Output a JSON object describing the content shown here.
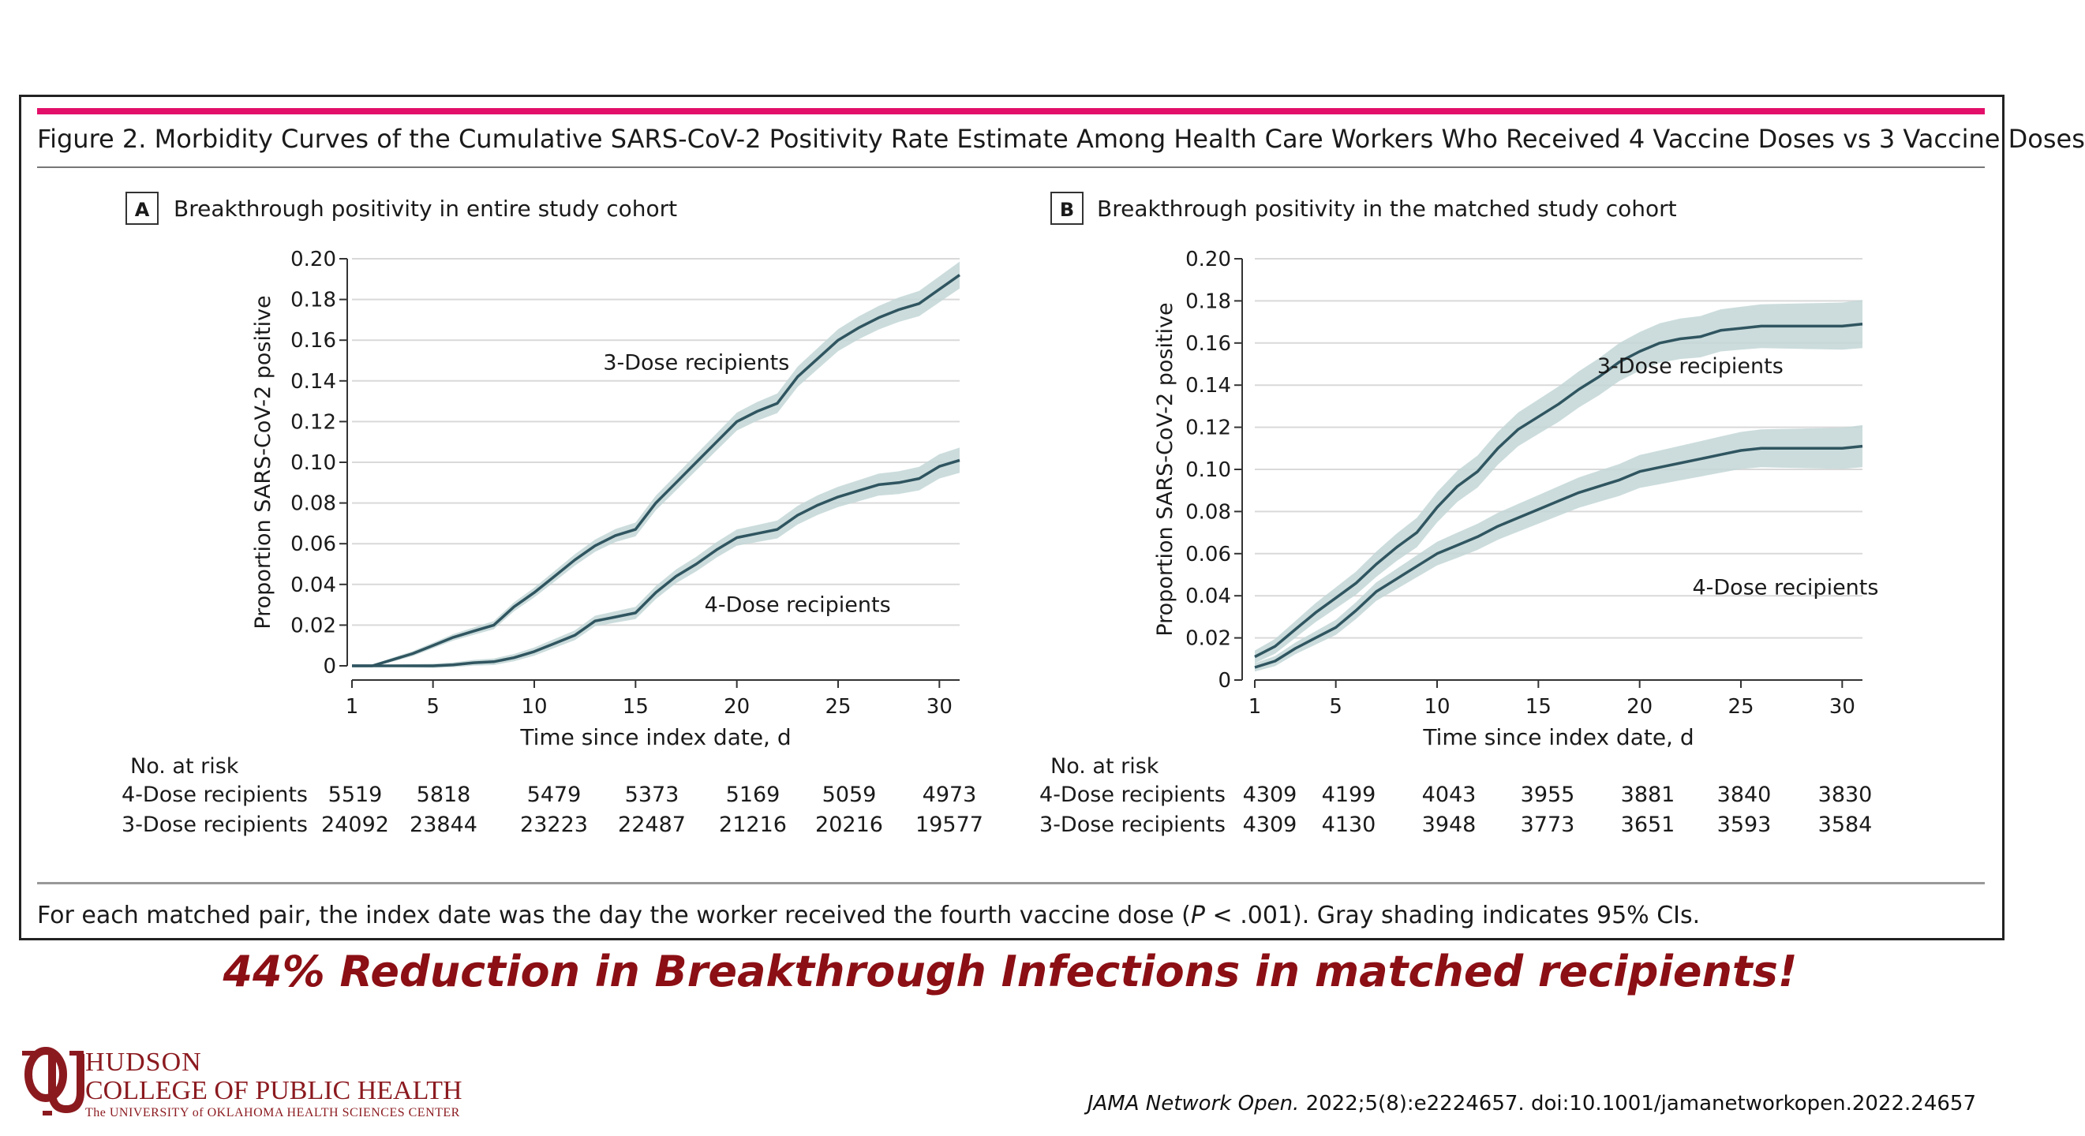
{
  "figure": {
    "title": "Figure 2. Morbidity Curves of the Cumulative SARS-CoV-2 Positivity Rate Estimate Among Health Care Workers Who Received 4 Vaccine Doses vs 3 Vaccine Doses",
    "note_before": "For each matched pair, the index date was the day the worker received the fourth vaccine dose (",
    "note_p": "P",
    "note_after": " < .001). Gray shading indicates 95% CIs.",
    "colors": {
      "title_rule": "#e3106a",
      "line": "#2f5560",
      "ci_band": "#c3d6d6",
      "gridline": "#d9d9d9"
    }
  },
  "risk_table_label": "No. at risk",
  "chart_data": [
    {
      "type": "line",
      "panel_letter": "A",
      "title": "Breakthrough positivity in entire study cohort",
      "xlabel": "Time since index date, d",
      "ylabel": "Proportion SARS-CoV-2 positive",
      "xlim": [
        1,
        31
      ],
      "ylim": [
        0,
        0.2
      ],
      "x_ticks": [
        1,
        5,
        10,
        15,
        20,
        25,
        30
      ],
      "x_tick_labels": [
        "1",
        "5",
        "10",
        "15",
        "20",
        "25",
        "30"
      ],
      "y_ticks": [
        0,
        0.02,
        0.04,
        0.06,
        0.08,
        0.1,
        0.12,
        0.14,
        0.16,
        0.18,
        0.2
      ],
      "y_tick_labels": [
        "0",
        "0.02",
        "0.04",
        "0.06",
        "0.08",
        "0.10",
        "0.12",
        "0.14",
        "0.16",
        "0.18",
        "0.20"
      ],
      "grid": true,
      "series": [
        {
          "name": "3-Dose recipients",
          "x": [
            1,
            2,
            3,
            4,
            5,
            6,
            7,
            8,
            9,
            10,
            11,
            12,
            13,
            14,
            15,
            16,
            17,
            18,
            19,
            20,
            21,
            22,
            23,
            24,
            25,
            26,
            27,
            28,
            29,
            30,
            31
          ],
          "y": [
            0,
            0,
            0.003,
            0.006,
            0.01,
            0.014,
            0.017,
            0.02,
            0.029,
            0.036,
            0.044,
            0.052,
            0.059,
            0.064,
            0.067,
            0.08,
            0.09,
            0.1,
            0.11,
            0.12,
            0.125,
            0.129,
            0.142,
            0.151,
            0.16,
            0.166,
            0.171,
            0.175,
            0.178,
            0.185,
            0.192
          ],
          "ci_halfwidth": [
            0,
            0.0005,
            0.001,
            0.0012,
            0.0014,
            0.0016,
            0.0018,
            0.002,
            0.0022,
            0.0024,
            0.0026,
            0.0028,
            0.003,
            0.0032,
            0.0034,
            0.0036,
            0.0038,
            0.004,
            0.0042,
            0.0044,
            0.0046,
            0.0048,
            0.005,
            0.0052,
            0.0054,
            0.0056,
            0.0058,
            0.006,
            0.0062,
            0.0064,
            0.0066
          ],
          "label_at": [
            18,
            0.149
          ]
        },
        {
          "name": "4-Dose recipients",
          "x": [
            1,
            2,
            3,
            4,
            5,
            6,
            7,
            8,
            9,
            10,
            11,
            12,
            13,
            14,
            15,
            16,
            17,
            18,
            19,
            20,
            21,
            22,
            23,
            24,
            25,
            26,
            27,
            28,
            29,
            30,
            31
          ],
          "y": [
            0,
            0,
            0,
            0,
            0,
            0.0005,
            0.0015,
            0.002,
            0.004,
            0.007,
            0.011,
            0.015,
            0.022,
            0.024,
            0.026,
            0.036,
            0.044,
            0.05,
            0.057,
            0.063,
            0.065,
            0.067,
            0.074,
            0.079,
            0.083,
            0.086,
            0.089,
            0.09,
            0.092,
            0.098,
            0.101
          ],
          "ci_halfwidth": [
            0,
            0.0004,
            0.0006,
            0.0008,
            0.001,
            0.0012,
            0.0014,
            0.0016,
            0.0018,
            0.002,
            0.0022,
            0.0024,
            0.0026,
            0.0028,
            0.003,
            0.0032,
            0.0034,
            0.0036,
            0.0038,
            0.004,
            0.0042,
            0.0044,
            0.0046,
            0.0048,
            0.005,
            0.0052,
            0.0054,
            0.0056,
            0.0058,
            0.006,
            0.0062
          ],
          "label_at": [
            23,
            0.03
          ]
        }
      ],
      "risk_table": {
        "x": [
          1,
          5,
          10,
          15,
          20,
          25,
          30
        ],
        "rows": [
          {
            "name": "4-Dose recipients",
            "values": [
              "5519",
              "5818",
              "5479",
              "5373",
              "5169",
              "5059",
              "4973"
            ]
          },
          {
            "name": "3-Dose recipients",
            "values": [
              "24092",
              "23844",
              "23223",
              "22487",
              "21216",
              "20216",
              "19577"
            ]
          }
        ]
      }
    },
    {
      "type": "line",
      "panel_letter": "B",
      "title": "Breakthrough positivity in the matched study cohort",
      "xlabel": "Time since index date, d",
      "ylabel": "Proportion SARS-CoV-2 positive",
      "xlim": [
        1,
        31
      ],
      "ylim": [
        0,
        0.2
      ],
      "x_ticks": [
        1,
        5,
        10,
        15,
        20,
        25,
        30
      ],
      "x_tick_labels": [
        "1",
        "5",
        "10",
        "15",
        "20",
        "25",
        "30"
      ],
      "y_ticks": [
        0,
        0.02,
        0.04,
        0.06,
        0.08,
        0.1,
        0.12,
        0.14,
        0.16,
        0.18,
        0.2
      ],
      "y_tick_labels": [
        "0",
        "0.02",
        "0.04",
        "0.06",
        "0.08",
        "0.10",
        "0.12",
        "0.14",
        "0.16",
        "0.18",
        "0.20"
      ],
      "grid": true,
      "series": [
        {
          "name": "3-Dose recipients",
          "x": [
            1,
            2,
            3,
            4,
            5,
            6,
            7,
            8,
            9,
            10,
            11,
            12,
            13,
            14,
            15,
            16,
            17,
            18,
            19,
            20,
            21,
            22,
            23,
            24,
            25,
            26,
            27,
            28,
            29,
            30,
            31
          ],
          "y": [
            0.011,
            0.016,
            0.024,
            0.032,
            0.039,
            0.046,
            0.055,
            0.063,
            0.07,
            0.082,
            0.092,
            0.099,
            0.11,
            0.119,
            0.125,
            0.131,
            0.138,
            0.144,
            0.151,
            0.156,
            0.16,
            0.162,
            0.163,
            0.166,
            0.167,
            0.168,
            0.168,
            0.168,
            0.168,
            0.168,
            0.169
          ],
          "ci_halfwidth": [
            0.003,
            0.0035,
            0.004,
            0.0045,
            0.005,
            0.0055,
            0.006,
            0.0065,
            0.007,
            0.0072,
            0.0074,
            0.0076,
            0.0078,
            0.008,
            0.0082,
            0.0084,
            0.0086,
            0.0088,
            0.009,
            0.0092,
            0.0094,
            0.0096,
            0.0098,
            0.01,
            0.0102,
            0.0104,
            0.0106,
            0.0108,
            0.011,
            0.0112,
            0.0114
          ],
          "label_at": [
            22.5,
            0.149
          ]
        },
        {
          "name": "4-Dose recipients",
          "x": [
            1,
            2,
            3,
            4,
            5,
            6,
            7,
            8,
            9,
            10,
            11,
            12,
            13,
            14,
            15,
            16,
            17,
            18,
            19,
            20,
            21,
            22,
            23,
            24,
            25,
            26,
            27,
            28,
            29,
            30,
            31
          ],
          "y": [
            0.006,
            0.009,
            0.015,
            0.02,
            0.025,
            0.033,
            0.042,
            0.048,
            0.054,
            0.06,
            0.064,
            0.068,
            0.073,
            0.077,
            0.081,
            0.085,
            0.089,
            0.092,
            0.095,
            0.099,
            0.101,
            0.103,
            0.105,
            0.107,
            0.109,
            0.11,
            0.11,
            0.11,
            0.11,
            0.11,
            0.111
          ],
          "ci_halfwidth": [
            0.002,
            0.0024,
            0.0028,
            0.0032,
            0.0036,
            0.004,
            0.0044,
            0.0048,
            0.0052,
            0.0056,
            0.006,
            0.0062,
            0.0064,
            0.0066,
            0.0068,
            0.007,
            0.0072,
            0.0074,
            0.0076,
            0.0078,
            0.008,
            0.0082,
            0.0084,
            0.0086,
            0.0088,
            0.009,
            0.0092,
            0.0094,
            0.0096,
            0.0098,
            0.01
          ],
          "label_at": [
            27.2,
            0.044
          ]
        }
      ],
      "risk_table": {
        "x": [
          1,
          5,
          10,
          15,
          20,
          25,
          30
        ],
        "rows": [
          {
            "name": "4-Dose recipients",
            "values": [
              "4309",
              "4199",
              "4043",
              "3955",
              "3881",
              "3840",
              "3830"
            ]
          },
          {
            "name": "3-Dose recipients",
            "values": [
              "4309",
              "4130",
              "3948",
              "3773",
              "3651",
              "3593",
              "3584"
            ]
          }
        ]
      }
    }
  ],
  "headline": "44% Reduction in Breakthrough Infections in matched recipients!",
  "logo": {
    "line1": "HUDSON",
    "line2": "COLLEGE OF PUBLIC HEALTH",
    "line3": "The UNIVERSITY of OKLAHOMA HEALTH SCIENCES CENTER",
    "color": "#8b1a1f"
  },
  "citation": {
    "journal": "JAMA Network Open.",
    "rest": " 2022;5(8):e2224657. doi:10.1001/jamanetworkopen.2022.24657"
  }
}
